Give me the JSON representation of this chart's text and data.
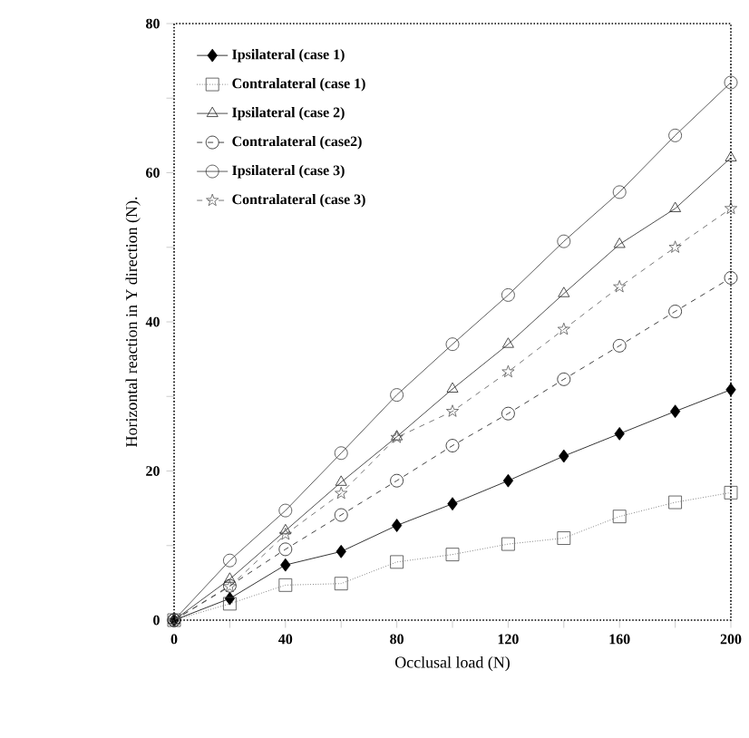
{
  "chart_data": {
    "type": "line",
    "xlabel": "Occlusal load (N)",
    "ylabel": "Horizontal reaction in Y direction (N).",
    "x": [
      0,
      20,
      40,
      60,
      80,
      100,
      120,
      140,
      160,
      180,
      200
    ],
    "series": [
      {
        "name": "Ipsilateral (case 1)",
        "color": "#000000",
        "marker": "diamond",
        "line_style": "solid",
        "values": [
          0,
          2.9,
          7.4,
          9.2,
          12.7,
          15.6,
          18.7,
          22,
          25,
          28,
          30.9
        ]
      },
      {
        "name": "Contralateral (case 1)",
        "color": "#444444",
        "marker": "square",
        "line_style": "dotted",
        "values": [
          0,
          2.2,
          4.7,
          4.9,
          7.8,
          8.8,
          10.2,
          11,
          13.9,
          15.8,
          17.1
        ]
      },
      {
        "name": "Ipsilateral (case 2)",
        "color": "#222222",
        "marker": "triangle",
        "line_style": "solid",
        "values": [
          0,
          5.5,
          12,
          18.5,
          24.6,
          31,
          37,
          43.8,
          50.4,
          55.2,
          62
        ]
      },
      {
        "name": "Contralateral (case2)",
        "color": "#111111",
        "marker": "circle",
        "line_style": "dashed",
        "values": [
          0,
          4.6,
          9.5,
          14.1,
          18.7,
          23.4,
          27.7,
          32.3,
          36.8,
          41.4,
          45.9
        ]
      },
      {
        "name": "Ipsilateral (case 3)",
        "color": "#333333",
        "marker": "circle",
        "line_style": "solid",
        "values": [
          0,
          8,
          14.7,
          22.4,
          30.2,
          37,
          43.6,
          50.8,
          57.4,
          65,
          72.1
        ]
      },
      {
        "name": "Contralateral (case 3)",
        "color": "#555555",
        "marker": "star",
        "line_style": "dashed",
        "values": [
          0,
          4.5,
          11.5,
          17,
          24.5,
          28,
          33.3,
          39,
          44.7,
          50,
          55.2
        ]
      }
    ],
    "xlim": [
      0,
      200
    ],
    "ylim": [
      0,
      80
    ],
    "xticks": [
      0,
      {
        "value": 20,
        "label": null
      },
      40,
      {
        "value": 60,
        "label": null
      },
      80,
      {
        "value": 100,
        "label": null
      },
      120,
      {
        "value": 140,
        "label": null
      },
      160,
      {
        "value": 180,
        "label": null
      },
      200
    ],
    "yticks": [
      0,
      {
        "value": 10,
        "label": null
      },
      20,
      {
        "value": 30,
        "label": null
      },
      40,
      {
        "value": 50,
        "label": null
      },
      60,
      {
        "value": 70,
        "label": null
      },
      80
    ],
    "grid": false,
    "legend": "top left"
  }
}
